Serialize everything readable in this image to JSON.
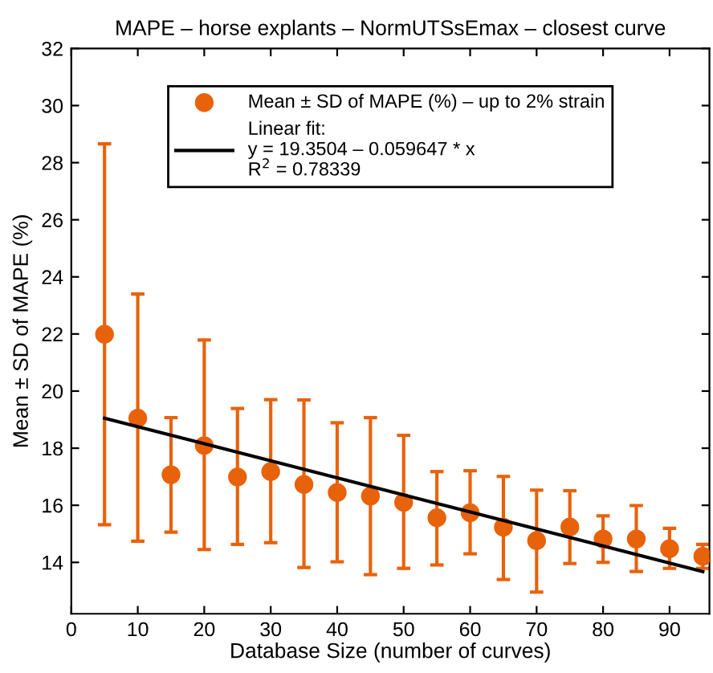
{
  "chart_data": {
    "type": "scatter",
    "title": "MAPE – horse explants – NormUTSsEmax – closest curve",
    "xlabel": "Database Size (number of curves)",
    "ylabel": "Mean ± SD of MAPE (%)",
    "xlim": [
      0,
      96
    ],
    "ylim": [
      12.2,
      32
    ],
    "xticks": [
      0,
      10,
      20,
      30,
      40,
      50,
      60,
      70,
      80,
      90
    ],
    "yticks": [
      14,
      16,
      18,
      20,
      22,
      24,
      26,
      28,
      30,
      32
    ],
    "grid": false,
    "legend": "top",
    "series": [
      {
        "name": "Mean ± SD of MAPE (%) – up to 2% strain",
        "color": "#e8620a",
        "marker": "circle",
        "x": [
          5,
          10,
          15,
          20,
          25,
          30,
          35,
          40,
          45,
          50,
          55,
          60,
          65,
          70,
          75,
          80,
          85,
          90,
          95
        ],
        "values": [
          21.99,
          19.05,
          17.07,
          18.09,
          16.99,
          17.18,
          16.73,
          16.45,
          16.32,
          16.1,
          15.56,
          15.74,
          15.23,
          14.76,
          15.24,
          14.82,
          14.82,
          14.48,
          14.21
        ],
        "errors": [
          [
            15.32,
            28.66
          ],
          [
            14.74,
            23.4
          ],
          [
            15.06,
            19.07
          ],
          [
            14.45,
            21.79
          ],
          [
            14.63,
            19.39
          ],
          [
            14.69,
            19.7
          ],
          [
            13.82,
            19.69
          ],
          [
            14.02,
            18.89
          ],
          [
            13.57,
            19.07
          ],
          [
            13.79,
            18.45
          ],
          [
            13.91,
            17.18
          ],
          [
            14.3,
            17.21
          ],
          [
            13.4,
            17.01
          ],
          [
            12.96,
            16.53
          ],
          [
            13.96,
            16.51
          ],
          [
            14.0,
            15.63
          ],
          [
            13.68,
            15.99
          ],
          [
            13.79,
            15.19
          ],
          [
            13.79,
            14.63
          ]
        ]
      },
      {
        "type": "line",
        "name": "Linear fit:\ny = 19.3504 – 0.059647 * x\nR$^{2}$ = 0.78339",
        "color": "#000000",
        "line_style": "solid",
        "marker": "none",
        "x": [
          5,
          95
        ],
        "values": [
          19.05,
          13.68
        ]
      }
    ]
  }
}
